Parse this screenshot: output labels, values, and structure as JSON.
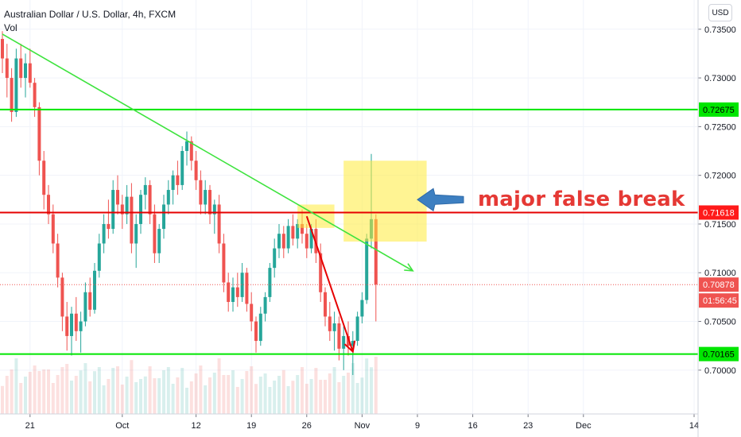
{
  "legend": {
    "title": "Australian Dollar / U.S. Dollar, 4h, FXCM",
    "indicator": "Vol"
  },
  "currency_button": "USD",
  "annotation_text": "major false break",
  "chart_data": {
    "type": "candlestick",
    "symbol": "AUDUSD",
    "timeframe": "4h",
    "ylim": [
      0.6955,
      0.738
    ],
    "y_ticks": [
      "0.73500",
      "0.73000",
      "0.72500",
      "0.72000",
      "0.71500",
      "0.71000",
      "0.70500",
      "0.70000"
    ],
    "y_tick_values": [
      0.735,
      0.73,
      0.725,
      0.72,
      0.715,
      0.71,
      0.705,
      0.7
    ],
    "x_ticks": [
      {
        "label": "21",
        "bar": 6
      },
      {
        "label": "Oct",
        "bar": 26
      },
      {
        "label": "12",
        "bar": 42
      },
      {
        "label": "19",
        "bar": 54
      },
      {
        "label": "26",
        "bar": 66
      },
      {
        "label": "Nov",
        "bar": 78
      },
      {
        "label": "9",
        "bar": 90
      },
      {
        "label": "16",
        "bar": 102
      },
      {
        "label": "23",
        "bar": 114
      },
      {
        "label": "Dec",
        "bar": 126
      },
      {
        "label": "14",
        "bar": 150
      }
    ],
    "price_labels": [
      {
        "text": "0.72675",
        "value": 0.72675,
        "kind": "hline-green"
      },
      {
        "text": "0.71618",
        "value": 0.71618,
        "kind": "hline-red"
      },
      {
        "text": "0.70878",
        "value": 0.70878,
        "kind": "last-price"
      },
      {
        "text": "01:56:45",
        "value": 0.70878,
        "kind": "countdown"
      },
      {
        "text": "0.70165",
        "value": 0.70165,
        "kind": "hline-green"
      }
    ],
    "horizontal_lines": [
      {
        "value": 0.72675,
        "color": "#00e600"
      },
      {
        "value": 0.71618,
        "color": "#e60000"
      },
      {
        "value": 0.70165,
        "color": "#00e600"
      }
    ],
    "last_price": 0.70878,
    "trendline": {
      "from": {
        "bar": 0,
        "value": 0.7345
      },
      "to": {
        "bar": 89,
        "value": 0.7102
      },
      "color": "#3ee33e"
    },
    "highlight_boxes": [
      {
        "bar_from": 64,
        "bar_to": 72,
        "value_from": 0.7146,
        "value_to": 0.717
      },
      {
        "bar_from": 74,
        "bar_to": 92,
        "value_from": 0.7132,
        "value_to": 0.7215
      }
    ],
    "red_arrow": {
      "from": {
        "bar": 66,
        "value": 0.7158
      },
      "to": {
        "bar": 76,
        "value": 0.7019
      }
    },
    "blue_arrow": {
      "from": {
        "bar": 100,
        "value": 0.7175
      },
      "to": {
        "bar": 90,
        "value": 0.7162
      }
    },
    "candles": [
      [
        0.734,
        0.7348,
        0.7305,
        0.732
      ],
      [
        0.732,
        0.7335,
        0.728,
        0.73
      ],
      [
        0.73,
        0.731,
        0.7255,
        0.7265
      ],
      [
        0.7265,
        0.733,
        0.726,
        0.732
      ],
      [
        0.732,
        0.7335,
        0.729,
        0.73
      ],
      [
        0.73,
        0.7325,
        0.728,
        0.7315
      ],
      [
        0.7315,
        0.733,
        0.729,
        0.7295
      ],
      [
        0.7295,
        0.73,
        0.726,
        0.727
      ],
      [
        0.727,
        0.7275,
        0.72,
        0.7215
      ],
      [
        0.7215,
        0.7225,
        0.7165,
        0.718
      ],
      [
        0.718,
        0.719,
        0.715,
        0.716
      ],
      [
        0.716,
        0.717,
        0.712,
        0.713
      ],
      [
        0.713,
        0.714,
        0.7085,
        0.7095
      ],
      [
        0.7095,
        0.71,
        0.704,
        0.7055
      ],
      [
        0.7055,
        0.707,
        0.702,
        0.7035
      ],
      [
        0.7035,
        0.7065,
        0.7015,
        0.7058
      ],
      [
        0.7058,
        0.7075,
        0.703,
        0.704
      ],
      [
        0.704,
        0.706,
        0.7018,
        0.705
      ],
      [
        0.705,
        0.709,
        0.7045,
        0.708
      ],
      [
        0.708,
        0.7095,
        0.7055,
        0.7062
      ],
      [
        0.7062,
        0.711,
        0.7058,
        0.7102
      ],
      [
        0.7102,
        0.714,
        0.7095,
        0.713
      ],
      [
        0.713,
        0.716,
        0.712,
        0.715
      ],
      [
        0.715,
        0.7175,
        0.7135,
        0.7145
      ],
      [
        0.7145,
        0.7195,
        0.714,
        0.7185
      ],
      [
        0.7185,
        0.72,
        0.716,
        0.717
      ],
      [
        0.717,
        0.718,
        0.7145,
        0.716
      ],
      [
        0.716,
        0.719,
        0.715,
        0.7178
      ],
      [
        0.7178,
        0.7192,
        0.712,
        0.713
      ],
      [
        0.713,
        0.716,
        0.7105,
        0.715
      ],
      [
        0.715,
        0.7185,
        0.714,
        0.718
      ],
      [
        0.718,
        0.7198,
        0.7165,
        0.719
      ],
      [
        0.719,
        0.7195,
        0.715,
        0.716
      ],
      [
        0.716,
        0.717,
        0.711,
        0.712
      ],
      [
        0.712,
        0.715,
        0.711,
        0.7145
      ],
      [
        0.7145,
        0.718,
        0.7135,
        0.717
      ],
      [
        0.717,
        0.7195,
        0.716,
        0.7185
      ],
      [
        0.7185,
        0.7205,
        0.717,
        0.72
      ],
      [
        0.72,
        0.7215,
        0.718,
        0.719
      ],
      [
        0.719,
        0.723,
        0.7185,
        0.7225
      ],
      [
        0.7225,
        0.7245,
        0.721,
        0.7235
      ],
      [
        0.7235,
        0.724,
        0.7205,
        0.7215
      ],
      [
        0.7215,
        0.7225,
        0.7185,
        0.7195
      ],
      [
        0.7195,
        0.7205,
        0.716,
        0.717
      ],
      [
        0.717,
        0.7195,
        0.716,
        0.7185
      ],
      [
        0.7185,
        0.719,
        0.715,
        0.716
      ],
      [
        0.716,
        0.7175,
        0.714,
        0.717
      ],
      [
        0.717,
        0.718,
        0.712,
        0.713
      ],
      [
        0.713,
        0.714,
        0.708,
        0.709
      ],
      [
        0.709,
        0.71,
        0.706,
        0.707
      ],
      [
        0.707,
        0.7095,
        0.706,
        0.7085
      ],
      [
        0.7085,
        0.71,
        0.7065,
        0.7075
      ],
      [
        0.7075,
        0.711,
        0.707,
        0.71
      ],
      [
        0.71,
        0.7105,
        0.706,
        0.7068
      ],
      [
        0.7068,
        0.708,
        0.704,
        0.705
      ],
      [
        0.705,
        0.7055,
        0.7018,
        0.703
      ],
      [
        0.703,
        0.7065,
        0.7025,
        0.7058
      ],
      [
        0.7058,
        0.708,
        0.705,
        0.7075
      ],
      [
        0.7075,
        0.711,
        0.707,
        0.7105
      ],
      [
        0.7105,
        0.7135,
        0.7095,
        0.7125
      ],
      [
        0.7125,
        0.715,
        0.7115,
        0.714
      ],
      [
        0.714,
        0.7148,
        0.7115,
        0.7125
      ],
      [
        0.7125,
        0.7155,
        0.712,
        0.7148
      ],
      [
        0.7148,
        0.716,
        0.7128,
        0.7135
      ],
      [
        0.7135,
        0.7155,
        0.7125,
        0.715
      ],
      [
        0.715,
        0.7165,
        0.713,
        0.714
      ],
      [
        0.714,
        0.715,
        0.7115,
        0.7125
      ],
      [
        0.7125,
        0.715,
        0.712,
        0.7145
      ],
      [
        0.7145,
        0.7155,
        0.711,
        0.712
      ],
      [
        0.712,
        0.713,
        0.707,
        0.708
      ],
      [
        0.708,
        0.7085,
        0.7045,
        0.7055
      ],
      [
        0.7055,
        0.707,
        0.703,
        0.704
      ],
      [
        0.704,
        0.706,
        0.702,
        0.7048
      ],
      [
        0.7048,
        0.7055,
        0.701,
        0.7022
      ],
      [
        0.7022,
        0.7045,
        0.7,
        0.7035
      ],
      [
        0.7035,
        0.705,
        0.7015,
        0.7025
      ],
      [
        0.7025,
        0.704,
        0.6995,
        0.703
      ],
      [
        0.703,
        0.706,
        0.7025,
        0.7055
      ],
      [
        0.7055,
        0.708,
        0.7048,
        0.7072
      ],
      [
        0.7072,
        0.714,
        0.7068,
        0.7135
      ],
      [
        0.7135,
        0.7222,
        0.7125,
        0.7155
      ],
      [
        0.7155,
        0.716,
        0.705,
        0.7088
      ]
    ],
    "volume_range": [
      0,
      1
    ]
  }
}
